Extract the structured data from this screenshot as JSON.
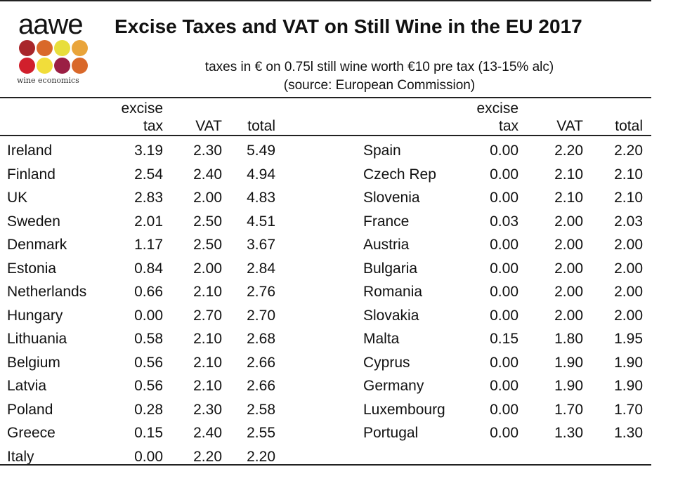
{
  "logo": {
    "word": "aawe",
    "subtitle": "wine economics",
    "dot_colors": [
      "#a8262b",
      "#d9682a",
      "#e8de3c",
      "#e9a43a",
      "#d11f2c",
      "#f1dd3a",
      "#9b1f44",
      "#d9682a"
    ]
  },
  "title": "Excise Taxes and VAT on Still Wine in the EU 2017",
  "subtitle_line1": "taxes in € on 0.75l still wine worth €10 pre tax (13-15% alc)",
  "subtitle_line2": "(source: European Commission)",
  "headers": {
    "excise_line1": "excise",
    "excise_line2": "tax",
    "vat": "VAT",
    "total": "total"
  },
  "left_rows": [
    {
      "country": "Ireland",
      "excise": "3.19",
      "vat": "2.30",
      "total": "5.49"
    },
    {
      "country": "Finland",
      "excise": "2.54",
      "vat": "2.40",
      "total": "4.94"
    },
    {
      "country": "UK",
      "excise": "2.83",
      "vat": "2.00",
      "total": "4.83"
    },
    {
      "country": "Sweden",
      "excise": "2.01",
      "vat": "2.50",
      "total": "4.51"
    },
    {
      "country": "Denmark",
      "excise": "1.17",
      "vat": "2.50",
      "total": "3.67"
    },
    {
      "country": "Estonia",
      "excise": "0.84",
      "vat": "2.00",
      "total": "2.84"
    },
    {
      "country": "Netherlands",
      "excise": "0.66",
      "vat": "2.10",
      "total": "2.76"
    },
    {
      "country": "Hungary",
      "excise": "0.00",
      "vat": "2.70",
      "total": "2.70"
    },
    {
      "country": "Lithuania",
      "excise": "0.58",
      "vat": "2.10",
      "total": "2.68"
    },
    {
      "country": "Belgium",
      "excise": "0.56",
      "vat": "2.10",
      "total": "2.66"
    },
    {
      "country": "Latvia",
      "excise": "0.56",
      "vat": "2.10",
      "total": "2.66"
    },
    {
      "country": "Poland",
      "excise": "0.28",
      "vat": "2.30",
      "total": "2.58"
    },
    {
      "country": "Greece",
      "excise": "0.15",
      "vat": "2.40",
      "total": "2.55"
    },
    {
      "country": "Italy",
      "excise": "0.00",
      "vat": "2.20",
      "total": "2.20"
    }
  ],
  "right_rows": [
    {
      "country": "Spain",
      "excise": "0.00",
      "vat": "2.20",
      "total": "2.20"
    },
    {
      "country": "Czech Rep",
      "excise": "0.00",
      "vat": "2.10",
      "total": "2.10"
    },
    {
      "country": "Slovenia",
      "excise": "0.00",
      "vat": "2.10",
      "total": "2.10"
    },
    {
      "country": "France",
      "excise": "0.03",
      "vat": "2.00",
      "total": "2.03"
    },
    {
      "country": "Austria",
      "excise": "0.00",
      "vat": "2.00",
      "total": "2.00"
    },
    {
      "country": "Bulgaria",
      "excise": "0.00",
      "vat": "2.00",
      "total": "2.00"
    },
    {
      "country": "Romania",
      "excise": "0.00",
      "vat": "2.00",
      "total": "2.00"
    },
    {
      "country": "Slovakia",
      "excise": "0.00",
      "vat": "2.00",
      "total": "2.00"
    },
    {
      "country": "Malta",
      "excise": "0.15",
      "vat": "1.80",
      "total": "1.95"
    },
    {
      "country": "Cyprus",
      "excise": "0.00",
      "vat": "1.90",
      "total": "1.90"
    },
    {
      "country": "Germany",
      "excise": "0.00",
      "vat": "1.90",
      "total": "1.90"
    },
    {
      "country": "Luxembourg",
      "excise": "0.00",
      "vat": "1.70",
      "total": "1.70"
    },
    {
      "country": "Portugal",
      "excise": "0.00",
      "vat": "1.30",
      "total": "1.30"
    }
  ]
}
